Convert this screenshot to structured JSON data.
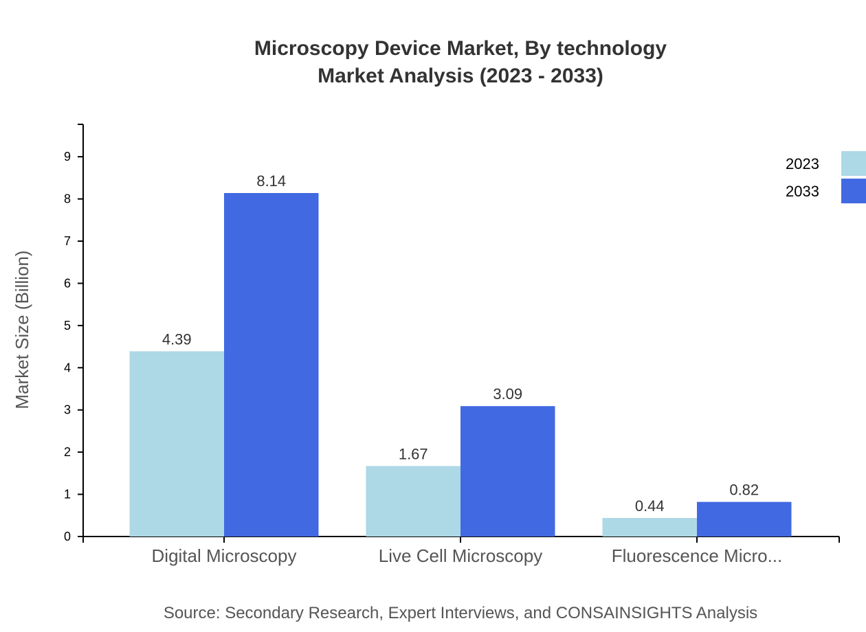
{
  "chart_data": {
    "type": "bar",
    "title": "Microscopy Device Market, By technology",
    "subtitle": "Market Analysis (2023 - 2033)",
    "xlabel": "",
    "ylabel": "Market Size (Billion)",
    "ylim": [
      0,
      9.768
    ],
    "yticks": [
      0,
      1,
      2,
      3,
      4,
      5,
      6,
      7,
      8,
      9
    ],
    "grid": false,
    "legend_position": "top-right",
    "categories": [
      "Digital Microscopy",
      "Live Cell Microscopy",
      "Fluorescence Micro..."
    ],
    "series": [
      {
        "name": "2023",
        "color": "#add8e6",
        "values": [
          4.39,
          1.67,
          0.44
        ]
      },
      {
        "name": "2033",
        "color": "#4169e1",
        "values": [
          8.14,
          3.09,
          0.82
        ]
      }
    ],
    "source": "Source: Secondary Research, Expert Interviews, and CONSAINSIGHTS Analysis"
  }
}
